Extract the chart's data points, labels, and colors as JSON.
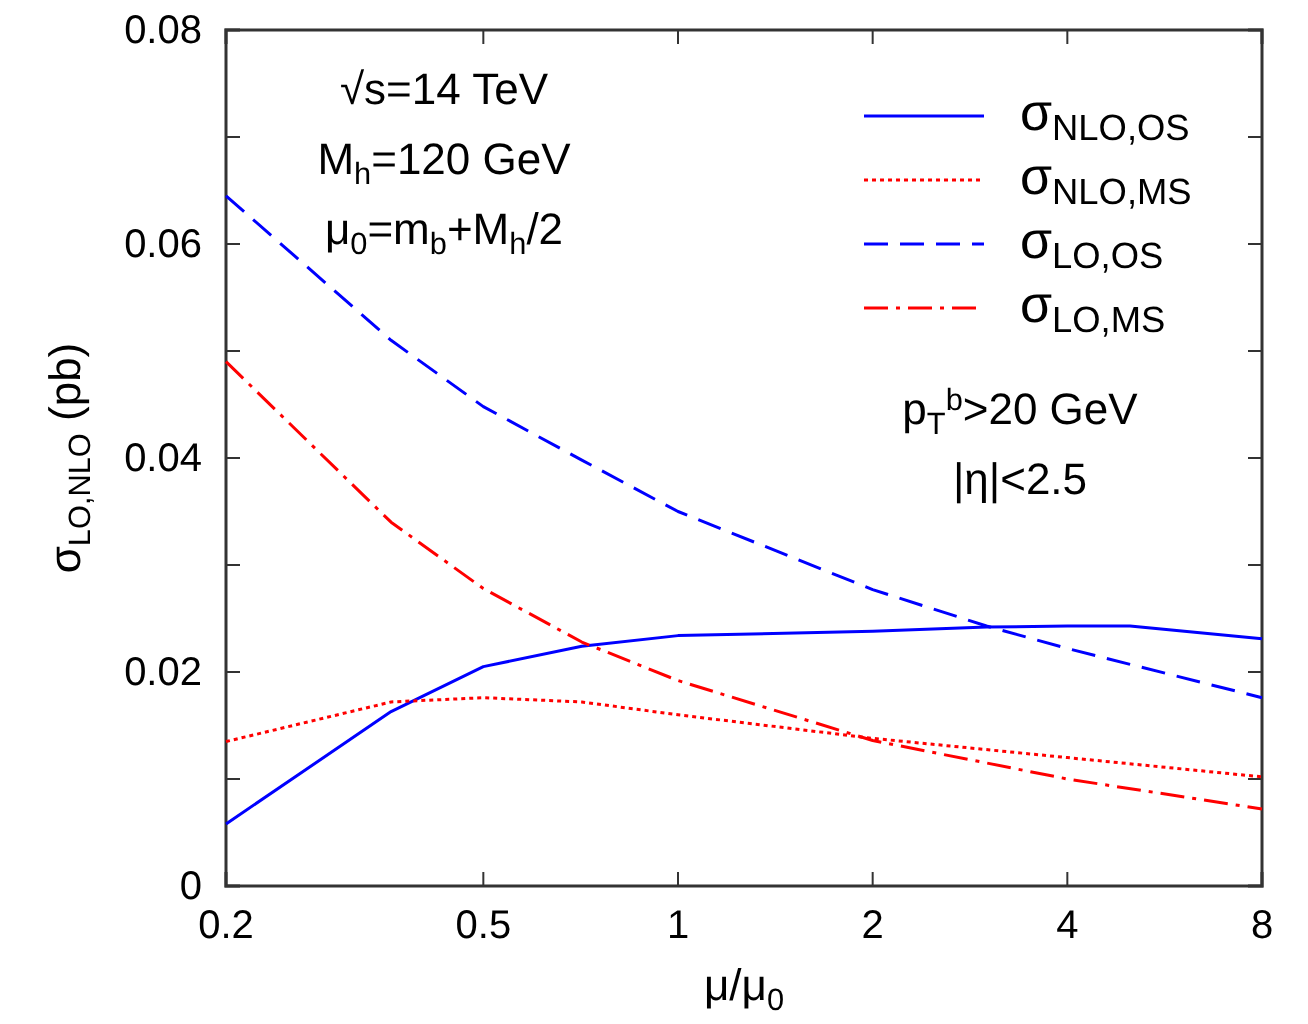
{
  "chart_data": {
    "type": "line",
    "xlabel": "μ/μ$_{0}$",
    "ylabel": "σ$_{LO,NLO}$ (pb)",
    "log": "x",
    "xlim": [
      0.2,
      8
    ],
    "xticks": [
      0.2,
      0.5,
      1,
      2,
      4,
      8
    ],
    "ylim": [
      0,
      0.08
    ],
    "yticks": [
      0,
      {
        "value": 0.01,
        "label": null
      },
      0.02,
      {
        "value": 0.03,
        "label": null
      },
      0.04,
      {
        "value": 0.05,
        "label": null
      },
      0.06,
      {
        "value": 0.07,
        "label": null
      },
      0.08
    ],
    "grid": false,
    "legend": "top right",
    "annotations": [
      "√s=14 TeV",
      "M$_{h}$=120 GeV",
      "μ$_{0}$=m$_{b}$+M$_{h}$/2",
      "p$_{T}$$^{b}$>20 GeV",
      "|η|<2.5"
    ],
    "series": [
      {
        "name": "σ$_{NLO,OS}$",
        "color": "#0000ff",
        "line_style": "solid",
        "x": [
          0.2,
          0.36,
          0.5,
          0.71,
          1,
          2,
          3,
          4,
          5,
          8
        ],
        "values": [
          0.0058,
          0.0163,
          0.0205,
          0.0224,
          0.0234,
          0.0238,
          0.0242,
          0.0243,
          0.0243,
          0.0231
        ]
      },
      {
        "name": "σ$_{NLO,MS}$",
        "color": "#ff0000",
        "line_style": "dotted",
        "x": [
          0.2,
          0.36,
          0.5,
          0.71,
          1,
          2,
          4,
          8
        ],
        "values": [
          0.0135,
          0.0172,
          0.0176,
          0.0172,
          0.016,
          0.0138,
          0.012,
          0.0102
        ]
      },
      {
        "name": "σ$_{LO,OS}$",
        "color": "#0000ff",
        "line_style": "dashed",
        "x": [
          0.2,
          0.36,
          0.5,
          0.71,
          1,
          2,
          3,
          4,
          8
        ],
        "values": [
          0.0645,
          0.051,
          0.0448,
          0.0398,
          0.035,
          0.0277,
          0.0243,
          0.0222,
          0.0176
        ]
      },
      {
        "name": "σ$_{LO,MS}$",
        "color": "#ff0000",
        "line_style": "dashdot",
        "x": [
          0.2,
          0.36,
          0.5,
          0.71,
          1,
          2,
          4,
          8
        ],
        "values": [
          0.049,
          0.034,
          0.0278,
          0.0228,
          0.0192,
          0.0136,
          0.01,
          0.0072
        ]
      }
    ]
  }
}
